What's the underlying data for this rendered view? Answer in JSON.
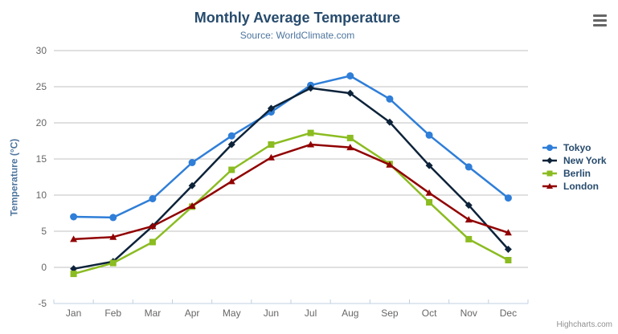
{
  "header": {
    "title": "Monthly Average Temperature",
    "subtitle": "Source: WorldClimate.com"
  },
  "chart_data": {
    "type": "line",
    "categories": [
      "Jan",
      "Feb",
      "Mar",
      "Apr",
      "May",
      "Jun",
      "Jul",
      "Aug",
      "Sep",
      "Oct",
      "Nov",
      "Dec"
    ],
    "series": [
      {
        "name": "Tokyo",
        "color": "#2f7ed8",
        "marker": "circle",
        "values": [
          7.0,
          6.9,
          9.5,
          14.5,
          18.2,
          21.5,
          25.2,
          26.5,
          23.3,
          18.3,
          13.9,
          9.6
        ]
      },
      {
        "name": "New York",
        "color": "#0d233a",
        "marker": "diamond",
        "values": [
          -0.2,
          0.8,
          5.7,
          11.3,
          17.0,
          22.0,
          24.8,
          24.1,
          20.1,
          14.1,
          8.6,
          2.5
        ]
      },
      {
        "name": "Berlin",
        "color": "#8bbc21",
        "marker": "square",
        "values": [
          -0.9,
          0.6,
          3.5,
          8.4,
          13.5,
          17.0,
          18.6,
          17.9,
          14.3,
          9.0,
          3.9,
          1.0
        ]
      },
      {
        "name": "London",
        "color": "#910000",
        "marker": "triangle",
        "values": [
          3.9,
          4.2,
          5.7,
          8.5,
          11.9,
          15.2,
          17.0,
          16.6,
          14.2,
          10.3,
          6.6,
          4.8
        ]
      }
    ],
    "title": "Monthly Average Temperature",
    "xlabel": "",
    "ylabel": "Temperature (°C)",
    "ylim": [
      -5,
      30
    ],
    "yticks": [
      -5,
      0,
      5,
      10,
      15,
      20,
      25,
      30
    ],
    "grid": true,
    "legend_position": "right"
  },
  "icons": {
    "context_menu": "hamburger"
  },
  "credits": "Highcharts.com",
  "colors": {
    "title": "#274b6d",
    "subtitle": "#4d759e",
    "axis_title": "#4d759e",
    "axis_labels": "#666666",
    "legend_text": "#274b6d",
    "gridline": "#c0c0c0",
    "axis_line": "#c0d0e0",
    "credits": "#909090",
    "menu_icon": "#666666",
    "background": "#ffffff"
  }
}
